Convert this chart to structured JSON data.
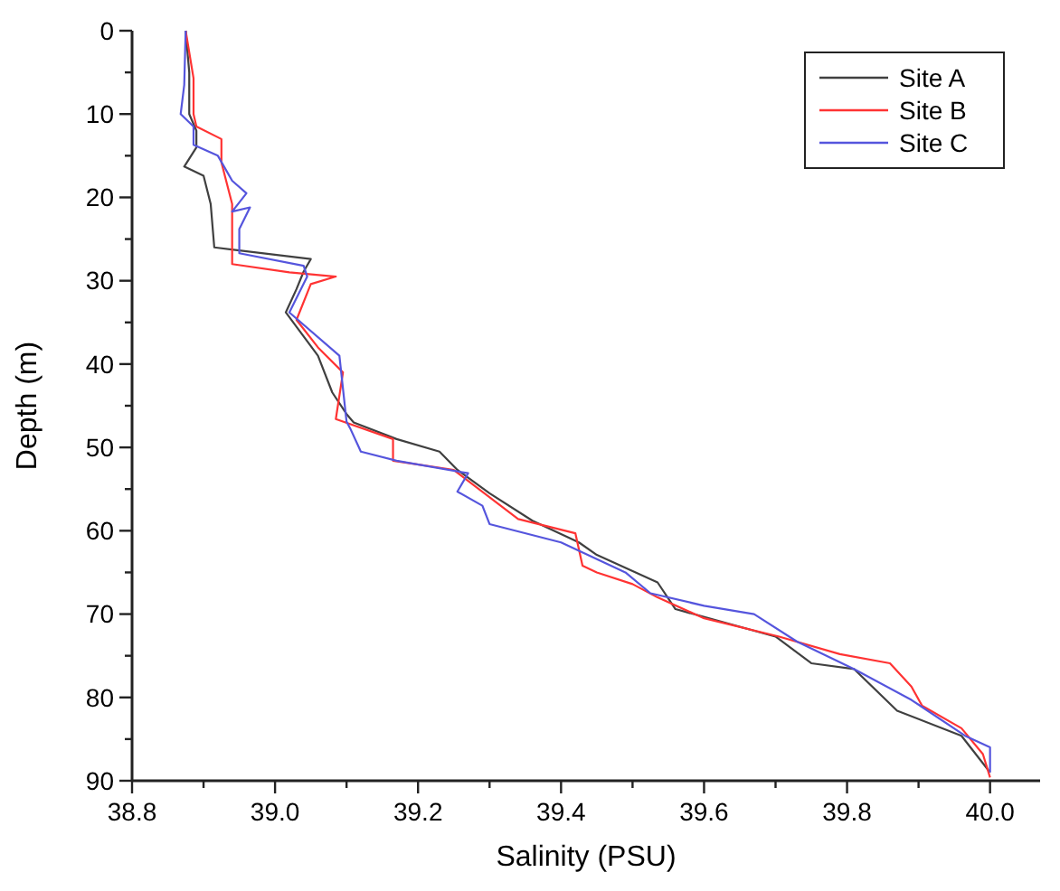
{
  "chart_data": {
    "type": "line",
    "xlabel": "Salinity (PSU)",
    "ylabel": "Depth (m)",
    "xlim": [
      38.8,
      40.07
    ],
    "ylim": [
      90,
      0
    ],
    "xticks": [
      38.8,
      {
        "value": 38.9,
        "label": null
      },
      {
        "value": 39,
        "label": "39.0"
      },
      {
        "value": 39.1,
        "label": null
      },
      39.2,
      {
        "value": 39.3,
        "label": null
      },
      39.4,
      {
        "value": 39.5,
        "label": null
      },
      39.6,
      {
        "value": 39.7,
        "label": null
      },
      39.8,
      {
        "value": 39.9,
        "label": null
      },
      {
        "value": 40,
        "label": "40.0"
      }
    ],
    "yticks": [
      0,
      {
        "value": 5,
        "label": null
      },
      10,
      {
        "value": 15,
        "label": null
      },
      20,
      {
        "value": 25,
        "label": null
      },
      30,
      {
        "value": 35,
        "label": null
      },
      40,
      {
        "value": 45,
        "label": null
      },
      50,
      {
        "value": 55,
        "label": null
      },
      60,
      {
        "value": 65,
        "label": null
      },
      70,
      {
        "value": 75,
        "label": null
      },
      80,
      {
        "value": 85,
        "label": null
      },
      90
    ],
    "legend": "top right",
    "grid": false,
    "marker": "none",
    "line_style": "solid",
    "series": [
      {
        "name": "Site A",
        "color": "#404040",
        "x": [
          38.875,
          38.88,
          38.88,
          38.89,
          38.89,
          38.873,
          38.9,
          38.91,
          38.915,
          39.05,
          39.04,
          39.03,
          39.015,
          39.06,
          39.08,
          39.1,
          39.11,
          39.17,
          39.23,
          39.255,
          39.3,
          39.36,
          39.425,
          39.45,
          39.535,
          39.56,
          39.7,
          39.75,
          39.81,
          39.87,
          39.96,
          40.0
        ],
        "values": [
          0,
          5,
          10,
          12,
          14,
          16.3,
          17.4,
          20.8,
          26,
          27.4,
          28.9,
          31,
          33.8,
          39,
          43.4,
          46,
          47,
          49,
          50.5,
          52.7,
          55.5,
          58.8,
          61.4,
          62.9,
          66.2,
          69.4,
          72.7,
          75.9,
          76.6,
          81.6,
          84.6,
          89
        ]
      },
      {
        "name": "Site B",
        "color": "#ff3333",
        "x": [
          38.875,
          38.886,
          38.886,
          38.89,
          38.925,
          38.925,
          38.94,
          38.94,
          39.02,
          39.085,
          39.05,
          39.03,
          39.06,
          39.095,
          39.085,
          39.165,
          39.165,
          39.25,
          39.34,
          39.42,
          39.43,
          39.45,
          39.5,
          39.535,
          39.6,
          39.705,
          39.79,
          39.86,
          39.89,
          39.905,
          39.96,
          39.99,
          40.0
        ],
        "values": [
          0,
          5.7,
          10,
          11.5,
          13,
          15.8,
          20.8,
          28,
          29,
          29.5,
          30.4,
          34.7,
          38,
          41,
          46.6,
          49,
          51.6,
          52.7,
          58.6,
          60.3,
          64.2,
          65,
          66.4,
          68,
          70.5,
          72.7,
          74.8,
          75.9,
          78.7,
          81,
          83.7,
          86.8,
          89.6
        ]
      },
      {
        "name": "Site C",
        "color": "#5555dd",
        "x": [
          38.875,
          38.873,
          38.868,
          38.886,
          38.886,
          38.92,
          38.94,
          38.96,
          38.94,
          38.965,
          38.95,
          38.95,
          39.04,
          39.045,
          39.02,
          39.09,
          39.1,
          39.105,
          39.12,
          39.17,
          39.27,
          39.255,
          39.29,
          39.3,
          39.4,
          39.49,
          39.525,
          39.6,
          39.67,
          39.73,
          39.81,
          39.89,
          39.965,
          40.0,
          40.0
        ],
        "values": [
          0,
          6.5,
          10,
          11.5,
          13.7,
          15,
          18,
          19.5,
          21.7,
          21.2,
          23.8,
          26.7,
          28.2,
          29.5,
          33.8,
          39,
          46.9,
          47.7,
          50.5,
          51.6,
          53.1,
          55.3,
          57,
          59.2,
          61.4,
          65,
          67.5,
          69,
          70,
          73.3,
          76.6,
          80.3,
          84.6,
          86,
          89
        ]
      }
    ]
  }
}
